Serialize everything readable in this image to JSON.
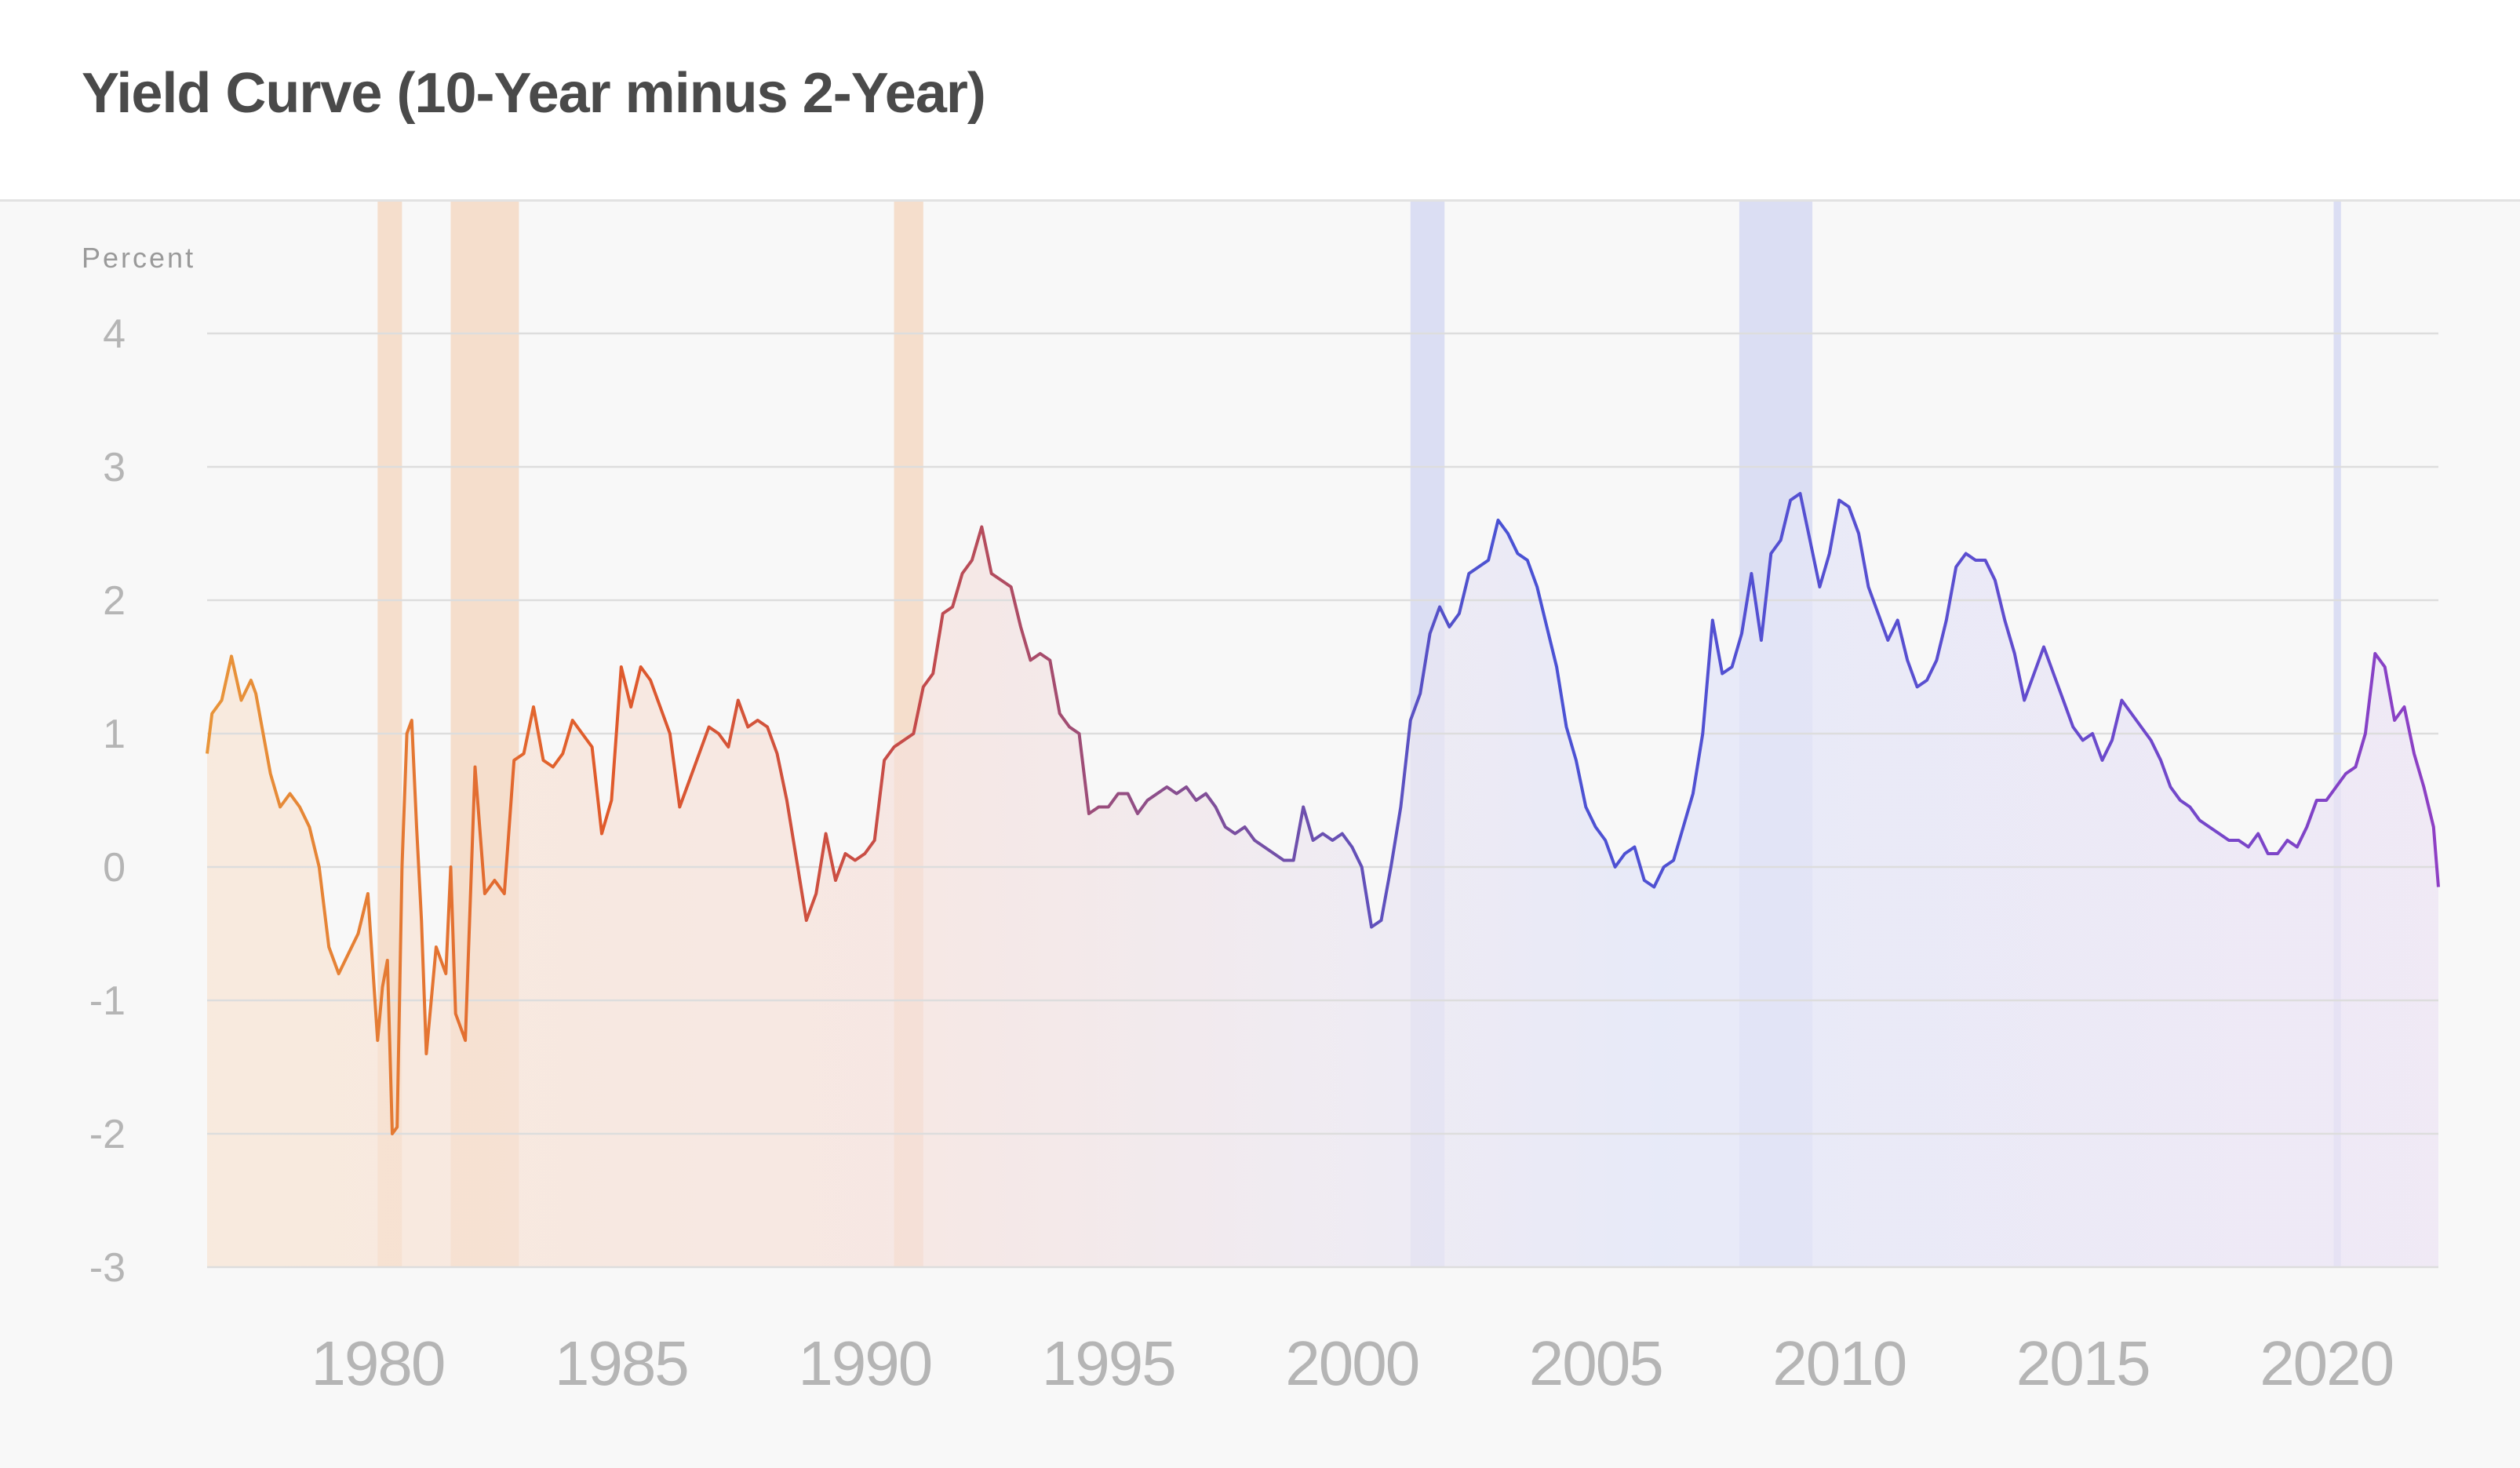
{
  "title": "Yield Curve (10-Year minus 2-Year)",
  "chart_data": {
    "type": "line",
    "title": "Yield Curve (10-Year minus 2-Year)",
    "ylabel": "Percent",
    "xlabel": "",
    "ylim": [
      -3,
      4
    ],
    "xlim": [
      1976.5,
      2022.3
    ],
    "yticks": [
      "4",
      "3",
      "2",
      "1",
      "0",
      "-1",
      "-2",
      "-3"
    ],
    "ytick_values": [
      4,
      3,
      2,
      1,
      0,
      -1,
      -2,
      -3
    ],
    "xticks": [
      "1980",
      "1985",
      "1990",
      "1995",
      "2000",
      "2005",
      "2010",
      "2015",
      "2020"
    ],
    "xtick_values": [
      1980,
      1985,
      1990,
      1995,
      2000,
      2005,
      2010,
      2015,
      2020
    ],
    "grid": true,
    "recessions": [
      [
        1980.0,
        1980.5
      ],
      [
        1981.5,
        1982.9
      ],
      [
        1990.6,
        1991.2
      ],
      [
        2001.2,
        2001.9
      ],
      [
        2007.95,
        2009.45
      ],
      [
        2020.15,
        2020.3
      ]
    ],
    "colors": {
      "start": "#e8953a",
      "early": "#e05a2b",
      "mid": "#c44b4b",
      "late90s": "#7a4fa0",
      "blue": "#4a52d4",
      "end": "#8e3fc4",
      "recession_warm": "#f2c9a8",
      "recession_cool": "#c8cdf0",
      "grid": "#dddddd",
      "tick": "#b5b5b5"
    },
    "series": [
      {
        "x": [
          1976.5,
          1976.6,
          1976.8,
          1977.0,
          1977.2,
          1977.4,
          1977.5,
          1977.6,
          1977.8,
          1978.0,
          1978.2,
          1978.4,
          1978.6,
          1978.8,
          1979.0,
          1979.2,
          1979.4,
          1979.6,
          1979.8,
          1980.0,
          1980.1,
          1980.2,
          1980.3,
          1980.4,
          1980.5,
          1980.6,
          1980.7,
          1980.8,
          1980.9,
          1981.0,
          1981.2,
          1981.4,
          1981.5,
          1981.6,
          1981.8,
          1982.0,
          1982.2,
          1982.4,
          1982.6,
          1982.8,
          1983.0,
          1983.2,
          1983.4,
          1983.6,
          1983.8,
          1984.0,
          1984.2,
          1984.4,
          1984.6,
          1984.8,
          1985.0,
          1985.2,
          1985.4,
          1985.6,
          1985.8,
          1986.0,
          1986.2,
          1986.4,
          1986.6,
          1986.8,
          1987.0,
          1987.2,
          1987.4,
          1987.6,
          1987.8,
          1988.0,
          1988.2,
          1988.4,
          1988.6,
          1988.8,
          1989.0,
          1989.2,
          1989.4,
          1989.6,
          1989.8,
          1990.0,
          1990.2,
          1990.4,
          1990.6,
          1990.8,
          1991.0,
          1991.2,
          1991.4,
          1991.6,
          1991.8,
          1992.0,
          1992.2,
          1992.4,
          1992.6,
          1992.8,
          1993.0,
          1993.2,
          1993.4,
          1993.6,
          1993.8,
          1994.0,
          1994.2,
          1994.4,
          1994.6,
          1994.8,
          1995.0,
          1995.2,
          1995.4,
          1995.6,
          1995.8,
          1996.0,
          1996.2,
          1996.4,
          1996.6,
          1996.8,
          1997.0,
          1997.2,
          1997.4,
          1997.6,
          1997.8,
          1998.0,
          1998.2,
          1998.4,
          1998.6,
          1998.8,
          1999.0,
          1999.2,
          1999.4,
          1999.6,
          1999.8,
          2000.0,
          2000.2,
          2000.4,
          2000.6,
          2000.8,
          2001.0,
          2001.2,
          2001.4,
          2001.6,
          2001.8,
          2002.0,
          2002.2,
          2002.4,
          2002.6,
          2002.8,
          2003.0,
          2003.2,
          2003.4,
          2003.6,
          2003.8,
          2004.0,
          2004.2,
          2004.4,
          2004.6,
          2004.8,
          2005.0,
          2005.2,
          2005.4,
          2005.6,
          2005.8,
          2006.0,
          2006.2,
          2006.4,
          2006.6,
          2006.8,
          2007.0,
          2007.2,
          2007.4,
          2007.6,
          2007.8,
          2008.0,
          2008.2,
          2008.4,
          2008.6,
          2008.8,
          2009.0,
          2009.2,
          2009.4,
          2009.6,
          2009.8,
          2010.0,
          2010.2,
          2010.4,
          2010.6,
          2010.8,
          2011.0,
          2011.2,
          2011.4,
          2011.6,
          2011.8,
          2012.0,
          2012.2,
          2012.4,
          2012.6,
          2012.8,
          2013.0,
          2013.2,
          2013.4,
          2013.6,
          2013.8,
          2014.0,
          2014.2,
          2014.4,
          2014.6,
          2014.8,
          2015.0,
          2015.2,
          2015.4,
          2015.6,
          2015.8,
          2016.0,
          2016.2,
          2016.4,
          2016.6,
          2016.8,
          2017.0,
          2017.2,
          2017.4,
          2017.6,
          2017.8,
          2018.0,
          2018.2,
          2018.4,
          2018.6,
          2018.8,
          2019.0,
          2019.2,
          2019.4,
          2019.6,
          2019.8,
          2020.0,
          2020.2,
          2020.4,
          2020.6,
          2020.8,
          2021.0,
          2021.2,
          2021.4,
          2021.6,
          2021.8,
          2022.0,
          2022.2,
          2022.3
        ],
        "y": [
          0.85,
          1.15,
          1.25,
          1.58,
          1.25,
          1.4,
          1.3,
          1.1,
          0.7,
          0.45,
          0.55,
          0.45,
          0.3,
          0.0,
          -0.6,
          -0.8,
          -0.65,
          -0.5,
          -0.2,
          -1.3,
          -0.9,
          -0.7,
          -2.0,
          -1.95,
          0.0,
          1.0,
          1.1,
          0.3,
          -0.4,
          -1.4,
          -0.6,
          -0.8,
          0.0,
          -1.1,
          -1.3,
          0.75,
          -0.2,
          -0.1,
          -0.2,
          0.8,
          0.85,
          1.2,
          0.8,
          0.75,
          0.85,
          1.1,
          1.0,
          0.9,
          0.25,
          0.5,
          1.5,
          1.2,
          1.5,
          1.4,
          1.2,
          1.0,
          0.45,
          0.65,
          0.85,
          1.05,
          1.0,
          0.9,
          1.25,
          1.05,
          1.1,
          1.05,
          0.85,
          0.5,
          0.05,
          -0.4,
          -0.2,
          0.25,
          -0.1,
          0.1,
          0.05,
          0.1,
          0.2,
          0.8,
          0.9,
          0.95,
          1.0,
          1.35,
          1.45,
          1.9,
          1.95,
          2.2,
          2.3,
          2.55,
          2.2,
          2.15,
          2.1,
          1.8,
          1.55,
          1.6,
          1.55,
          1.15,
          1.05,
          1.0,
          0.4,
          0.45,
          0.45,
          0.55,
          0.55,
          0.4,
          0.5,
          0.55,
          0.6,
          0.55,
          0.6,
          0.5,
          0.55,
          0.45,
          0.3,
          0.25,
          0.3,
          0.2,
          0.15,
          0.1,
          0.05,
          0.05,
          0.45,
          0.2,
          0.25,
          0.2,
          0.25,
          0.15,
          0.0,
          -0.45,
          -0.4,
          0.0,
          0.45,
          1.1,
          1.3,
          1.75,
          1.95,
          1.8,
          1.9,
          2.2,
          2.25,
          2.3,
          2.6,
          2.5,
          2.35,
          2.3,
          2.1,
          1.8,
          1.5,
          1.05,
          0.8,
          0.45,
          0.3,
          0.2,
          0.0,
          0.1,
          0.15,
          -0.1,
          -0.15,
          0.0,
          0.05,
          0.3,
          0.55,
          1.0,
          1.85,
          1.45,
          1.5,
          1.75,
          2.2,
          1.7,
          2.35,
          2.45,
          2.75,
          2.8,
          2.45,
          2.1,
          2.35,
          2.75,
          2.7,
          2.5,
          2.1,
          1.9,
          1.7,
          1.85,
          1.55,
          1.35,
          1.4,
          1.55,
          1.85,
          2.25,
          2.35,
          2.3,
          2.3,
          2.15,
          1.85,
          1.6,
          1.25,
          1.45,
          1.65,
          1.45,
          1.25,
          1.05,
          0.95,
          1.0,
          0.8,
          0.95,
          1.25,
          1.15,
          1.05,
          0.95,
          0.8,
          0.6,
          0.5,
          0.45,
          0.35,
          0.3,
          0.25,
          0.2,
          0.2,
          0.15,
          0.25,
          0.1,
          0.1,
          0.2,
          0.15,
          0.3,
          0.5,
          0.5,
          0.6,
          0.7,
          0.75,
          1.0,
          1.6,
          1.5,
          1.1,
          1.2,
          0.85,
          0.6,
          0.3,
          -0.15
        ]
      }
    ]
  }
}
